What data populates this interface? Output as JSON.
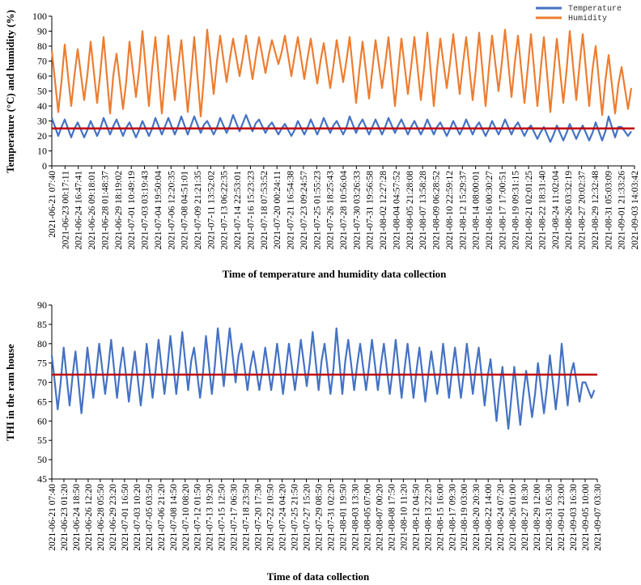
{
  "chart_data": [
    {
      "type": "line",
      "ylabel": "Temperature (°C) and humidity (%)",
      "xlabel": "Time of temperature and humidity data collection",
      "ylim": [
        0,
        100
      ],
      "yticks": [
        0,
        10,
        20,
        30,
        40,
        50,
        60,
        70,
        80,
        90,
        100
      ],
      "legend_position": "top-right",
      "categories": [
        "2021-06-21 07:40",
        "2021-06-23 00:17:11",
        "2021-06-24 16:47:41",
        "2021-06-26 09:18:01",
        "2021-06-28 01:48:37",
        "2021-06-29 18:19:02",
        "2021-07-01 10:49:19",
        "2021-07-03 03:19:43",
        "2021-07-04 19:50:04",
        "2021-07-06 12:20:35",
        "2021-07-08 04:51:01",
        "2021-07-09 21:21:35",
        "2021-07-11 13:52:02",
        "2021-07-13 06:22:35",
        "2021-07-14 22:53:01",
        "2021-07-16 15:23:23",
        "2021-07-18 07:53:52",
        "2021-07-20 00:24:11",
        "2021-07-21 16:54:38",
        "2021-07-23 09:24:57",
        "2021-07-25 01:55:23",
        "2021-07-26 18:25:43",
        "2021-07-28 10:56:04",
        "2021-07-30 03:26:33",
        "2021-07-31 19:56:58",
        "2021-08-02 12:27:28",
        "2021-08-04 04:57:52",
        "2021-08-05 21:28:08",
        "2021-08-07 13:58:28",
        "2021-08-09 06:28:52",
        "2021-08-10 22:59:12",
        "2021-08-12 15:29:37",
        "2021-08-14 08:00:01",
        "2021-08-16 00:30:27",
        "2021-08-17 17:00:51",
        "2021-08-19 09:31:15",
        "2021-08-21 02:01:25",
        "2021-08-22 18:31:40",
        "2021-08-24 11:02:04",
        "2021-08-26 03:32:19",
        "2021-08-27 20:02:37",
        "2021-08-29 12:32:48",
        "2021-08-31 05:03:09",
        "2021-09-01 21:33:26",
        "2021-09-03 14:03:42"
      ],
      "series": [
        {
          "name": "Temperature",
          "color": "#4472c4",
          "daily_min": [
            20,
            19,
            19,
            20,
            21,
            20,
            19,
            20,
            21,
            21,
            21,
            22,
            21,
            22,
            23,
            23,
            22,
            21,
            20,
            21,
            21,
            22,
            21,
            22,
            21,
            21,
            22,
            21,
            21,
            21,
            20,
            21,
            21,
            20,
            21,
            21,
            20,
            18,
            16,
            17,
            18,
            17,
            17,
            19,
            20
          ],
          "daily_max": [
            32,
            31,
            29,
            30,
            32,
            31,
            29,
            30,
            32,
            32,
            33,
            33,
            30,
            32,
            34,
            34,
            31,
            29,
            28,
            30,
            31,
            32,
            30,
            33,
            31,
            31,
            32,
            31,
            30,
            31,
            29,
            30,
            31,
            29,
            30,
            31,
            29,
            27,
            26,
            27,
            28,
            27,
            29,
            33,
            26
          ]
        },
        {
          "name": "Humidity",
          "color": "#ed7d31",
          "daily_min": [
            36,
            40,
            44,
            42,
            35,
            38,
            46,
            40,
            35,
            44,
            36,
            33,
            48,
            56,
            60,
            58,
            62,
            68,
            60,
            58,
            55,
            52,
            56,
            42,
            45,
            52,
            40,
            48,
            44,
            40,
            52,
            48,
            44,
            40,
            50,
            46,
            42,
            40,
            36,
            42,
            44,
            40,
            34,
            35,
            38
          ],
          "daily_max": [
            77,
            81,
            78,
            83,
            86,
            75,
            83,
            90,
            86,
            87,
            84,
            86,
            91,
            87,
            85,
            87,
            86,
            84,
            87,
            86,
            85,
            82,
            84,
            86,
            83,
            84,
            86,
            85,
            86,
            89,
            85,
            88,
            86,
            89,
            87,
            91,
            87,
            88,
            86,
            85,
            90,
            88,
            80,
            74,
            66
          ]
        }
      ],
      "mean_line": {
        "color": "#c00000",
        "value": 25
      }
    },
    {
      "type": "line",
      "ylabel": "THI in the ram house",
      "xlabel": "Time of data collection",
      "ylim": [
        45,
        90
      ],
      "yticks": [
        45,
        50,
        55,
        60,
        65,
        70,
        75,
        80,
        85,
        90
      ],
      "categories": [
        "2021-06-21 07:40",
        "2021-06-23 01:20",
        "2021-06-24 18:50",
        "2021-06-26 12:20",
        "2021-06-28 05:50",
        "2021-06-29 23:20",
        "2021-07-01 16:50",
        "2021-07-03 10:20",
        "2021-07-05 03:50",
        "2021-07-06 21:20",
        "2021-07-08 14:50",
        "2021-07-10 08:20",
        "2021-07-12 01:50",
        "2021-07-13 19:20",
        "2021-07-15 12:50",
        "2021-07-17 06:30",
        "2021-07-18 23:50",
        "2021-07-20 17:30",
        "2021-07-22 10:50",
        "2021-07-24 04:20",
        "2021-07-25 21:50",
        "2021-07-27 15:20",
        "2021-07-29 08:50",
        "2021-07-31 02:20",
        "2021-08-01 19:50",
        "2021-08-03 13:30",
        "2021-08-05 07:00",
        "2021-08-07 00:20",
        "2021-08-08 17:50",
        "2021-08-10 11:20",
        "2021-08-12 04:50",
        "2021-08-13 22:20",
        "2021-08-15 16:00",
        "2021-08-17 09:30",
        "2021-08-19 03:00",
        "2021-08-20 20:30",
        "2021-08-22 14:00",
        "2021-08-24 07:20",
        "2021-08-26 01:00",
        "2021-08-27 18:30",
        "2021-08-29 12:00",
        "2021-08-31 05:30",
        "2021-09-01 23:00",
        "2021-09-03 16:30",
        "2021-09-05 10:00",
        "2021-09-07 03:30"
      ],
      "series": [
        {
          "name": "THI",
          "color": "#4472c4",
          "daily_min": [
            63,
            64,
            62,
            66,
            67,
            66,
            65,
            64,
            66,
            67,
            67,
            68,
            66,
            67,
            69,
            70,
            68,
            68,
            68,
            67,
            68,
            69,
            68,
            67,
            67,
            68,
            68,
            68,
            67,
            66,
            66,
            65,
            67,
            66,
            66,
            67,
            64,
            60,
            58,
            59,
            61,
            62,
            63,
            64,
            65,
            66
          ],
          "daily_max": [
            77,
            79,
            78,
            79,
            80,
            81,
            79,
            78,
            80,
            81,
            82,
            83,
            79,
            82,
            84,
            84,
            80,
            78,
            79,
            80,
            80,
            81,
            83,
            80,
            84,
            81,
            80,
            81,
            80,
            81,
            80,
            79,
            78,
            80,
            79,
            80,
            79,
            76,
            74,
            74,
            73,
            75,
            77,
            80,
            75,
            70
          ]
        }
      ],
      "mean_line": {
        "color": "#c00000",
        "value": 72
      }
    }
  ]
}
